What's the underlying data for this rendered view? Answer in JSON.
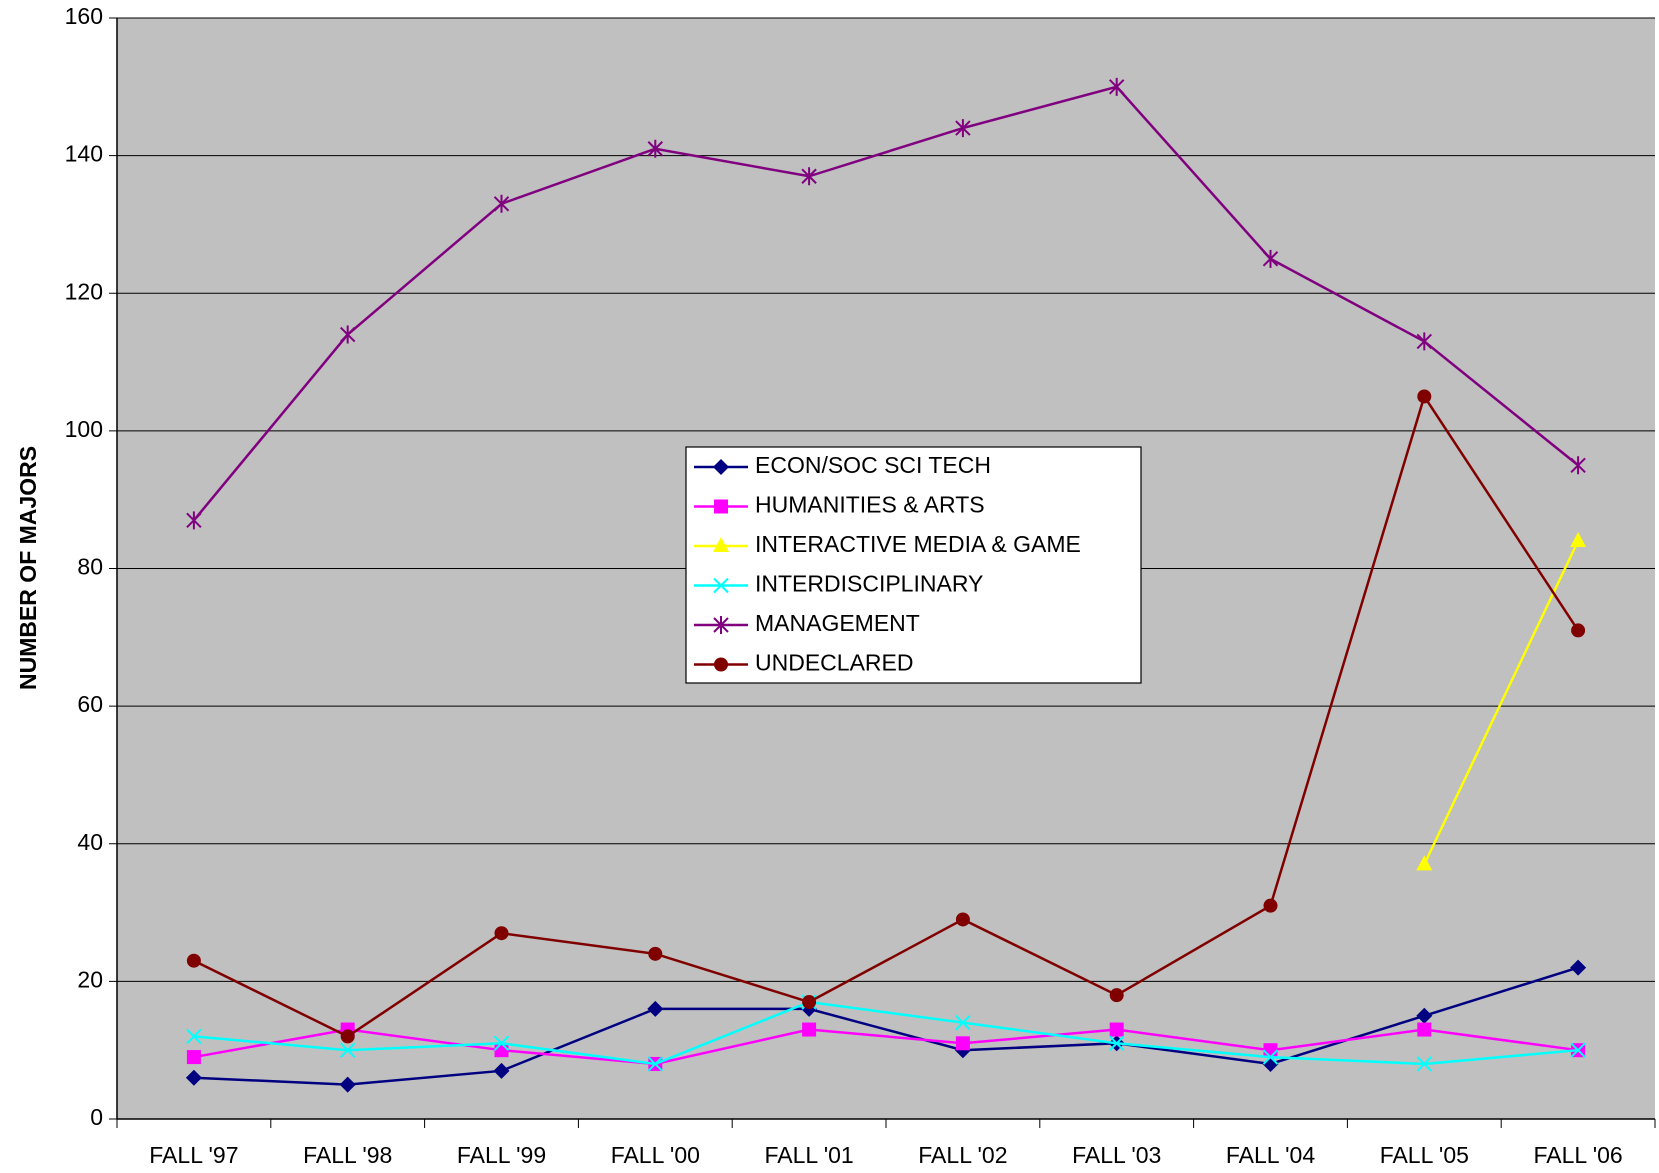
{
  "chart_data": {
    "type": "line",
    "y_label": "NUMBER OF MAJORS",
    "categories": [
      "FALL '97",
      "FALL '98",
      "FALL '99",
      "FALL '00",
      "FALL '01",
      "FALL '02",
      "FALL '03",
      "FALL '04",
      "FALL '05",
      "FALL '06"
    ],
    "series": [
      {
        "name": "ECON/SOC SCI TECH",
        "color": "#000080",
        "marker": "diamond",
        "values": [
          6,
          5,
          7,
          16,
          16,
          10,
          11,
          8,
          15,
          22
        ]
      },
      {
        "name": "HUMANITIES & ARTS",
        "color": "#ff00ff",
        "marker": "square",
        "values": [
          9,
          13,
          10,
          8,
          13,
          11,
          13,
          10,
          13,
          10
        ]
      },
      {
        "name": "INTERACTIVE MEDIA & GAME",
        "color": "#ffff00",
        "marker": "triangle",
        "values": [
          null,
          null,
          null,
          null,
          null,
          null,
          null,
          null,
          37,
          84
        ]
      },
      {
        "name": "INTERDISCIPLINARY",
        "color": "#00ffff",
        "marker": "x",
        "values": [
          12,
          10,
          11,
          8,
          17,
          14,
          11,
          9,
          8,
          10
        ]
      },
      {
        "name": "MANAGEMENT",
        "color": "#800080",
        "marker": "asterisk",
        "values": [
          87,
          114,
          133,
          141,
          137,
          144,
          150,
          125,
          113,
          95
        ]
      },
      {
        "name": "UNDECLARED",
        "color": "#800000",
        "marker": "circle",
        "values": [
          23,
          12,
          27,
          24,
          17,
          29,
          18,
          31,
          105,
          71
        ]
      }
    ],
    "ylim": [
      0,
      160
    ],
    "yticks": [
      0,
      20,
      40,
      60,
      80,
      100,
      120,
      140,
      160
    ],
    "grid": true,
    "plot_background": "#c0c0c0"
  }
}
